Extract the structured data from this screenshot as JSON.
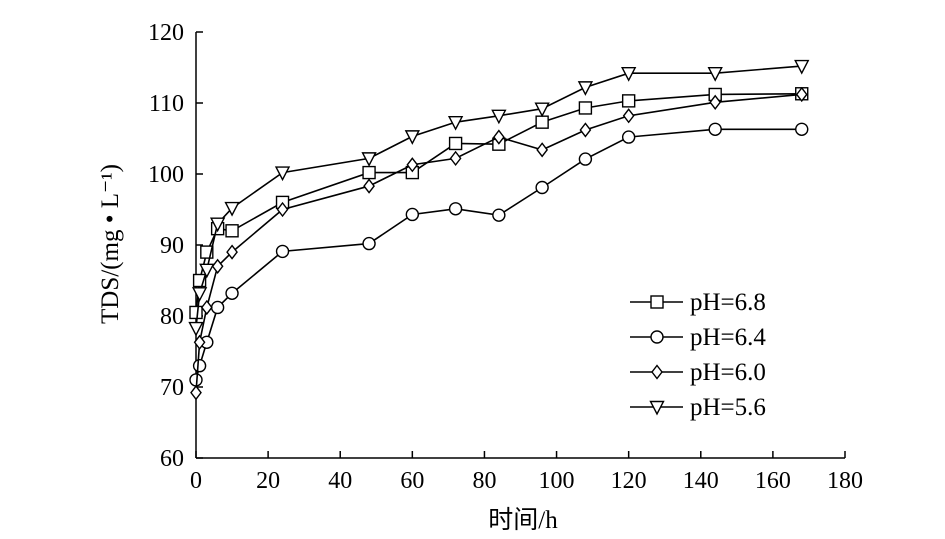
{
  "chart_data": {
    "type": "line",
    "xlabel": "时间/h",
    "ylabel": "TDS/(mg • L⁻¹)",
    "xlim": [
      0,
      180
    ],
    "ylim": [
      60,
      120
    ],
    "xticks": [
      0,
      20,
      40,
      60,
      80,
      100,
      120,
      140,
      160,
      180
    ],
    "yticks": [
      60,
      70,
      80,
      90,
      100,
      110,
      120
    ],
    "grid": false,
    "legend_position": "bottom-right",
    "series": [
      {
        "name": "pH=6.8",
        "marker": "square",
        "x": [
          0,
          1,
          3,
          6,
          10,
          24,
          48,
          60,
          72,
          84,
          96,
          108,
          120,
          144,
          168
        ],
        "y": [
          80.5,
          85,
          89,
          92.3,
          92,
          96,
          100.2,
          100.2,
          104.3,
          104.2,
          107.3,
          109.3,
          110.3,
          111.2,
          111.3
        ]
      },
      {
        "name": "pH=6.4",
        "marker": "circle",
        "x": [
          0,
          1,
          3,
          6,
          10,
          24,
          48,
          60,
          72,
          84,
          96,
          108,
          120,
          144,
          168
        ],
        "y": [
          71,
          73,
          76.3,
          81.2,
          83.2,
          89.1,
          90.2,
          94.3,
          95.1,
          94.2,
          98.1,
          102.1,
          105.2,
          106.3,
          106.3
        ]
      },
      {
        "name": "pH=6.0",
        "marker": "diamond",
        "x": [
          0,
          1,
          3,
          6,
          10,
          24,
          48,
          60,
          72,
          84,
          96,
          108,
          120,
          144,
          168
        ],
        "y": [
          69.2,
          76.3,
          81.2,
          87,
          89,
          95,
          98.3,
          101.3,
          102.2,
          105.2,
          103.4,
          106.2,
          108.2,
          110.1,
          111.2
        ]
      },
      {
        "name": "pH=5.6",
        "marker": "triangle-down",
        "x": [
          0,
          1,
          3,
          6,
          10,
          24,
          48,
          60,
          72,
          84,
          96,
          108,
          120,
          144,
          168
        ],
        "y": [
          78.3,
          83.2,
          86.5,
          93,
          95.2,
          100.2,
          102.2,
          105.3,
          107.3,
          108.2,
          109.2,
          112.2,
          114.2,
          114.2,
          115.2
        ]
      }
    ]
  }
}
